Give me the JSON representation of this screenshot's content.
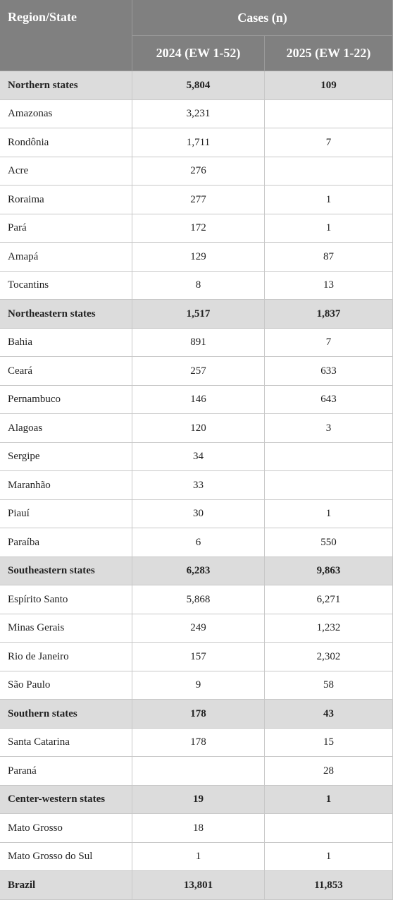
{
  "table": {
    "header": {
      "region": "Region/State",
      "cases": "Cases (n)",
      "years": [
        "2024 (EW 1-52)",
        "2025 (EW 1-22)"
      ]
    },
    "sections": [
      {
        "summary": [
          "Northern states",
          "5,804",
          "109"
        ],
        "rows": [
          [
            "Amazonas",
            "3,231",
            null
          ],
          [
            "Rondônia",
            "1,711",
            "7"
          ],
          [
            "Acre",
            "276",
            null
          ],
          [
            "Roraima",
            "277",
            "1"
          ],
          [
            "Pará",
            "172",
            "1"
          ],
          [
            "Amapá",
            "129",
            "87"
          ],
          [
            "Tocantins",
            "8",
            "13"
          ]
        ]
      },
      {
        "summary": [
          "Northeastern states",
          "1,517",
          "1,837"
        ],
        "rows": [
          [
            "Bahia",
            "891",
            "7"
          ],
          [
            "Ceará",
            "257",
            "633"
          ],
          [
            "Pernambuco",
            "146",
            "643"
          ],
          [
            "Alagoas",
            "120",
            "3"
          ],
          [
            "Sergipe",
            "34",
            null
          ],
          [
            "Maranhão",
            "33",
            null
          ],
          [
            "Piauí",
            "30",
            "1"
          ],
          [
            "Paraíba",
            "6",
            "550"
          ]
        ]
      },
      {
        "summary": [
          "Southeastern states",
          "6,283",
          "9,863"
        ],
        "rows": [
          [
            "Espírito Santo",
            "5,868",
            "6,271"
          ],
          [
            "Minas Gerais",
            "249",
            "1,232"
          ],
          [
            "Rio de Janeiro",
            "157",
            "2,302"
          ],
          [
            "São Paulo",
            "9",
            "58"
          ]
        ]
      },
      {
        "summary": [
          "Southern states",
          "178",
          "43"
        ],
        "rows": [
          [
            "Santa Catarina",
            "178",
            "15"
          ],
          [
            "Paraná",
            null,
            "28"
          ]
        ]
      },
      {
        "summary": [
          "Center-western states",
          "19",
          "1"
        ],
        "rows": [
          [
            "Mato Grosso",
            "18",
            null
          ],
          [
            "Mato Grosso do Sul",
            "1",
            "1"
          ]
        ]
      }
    ],
    "total": [
      "Brazil",
      "13,801",
      "11,853"
    ]
  }
}
